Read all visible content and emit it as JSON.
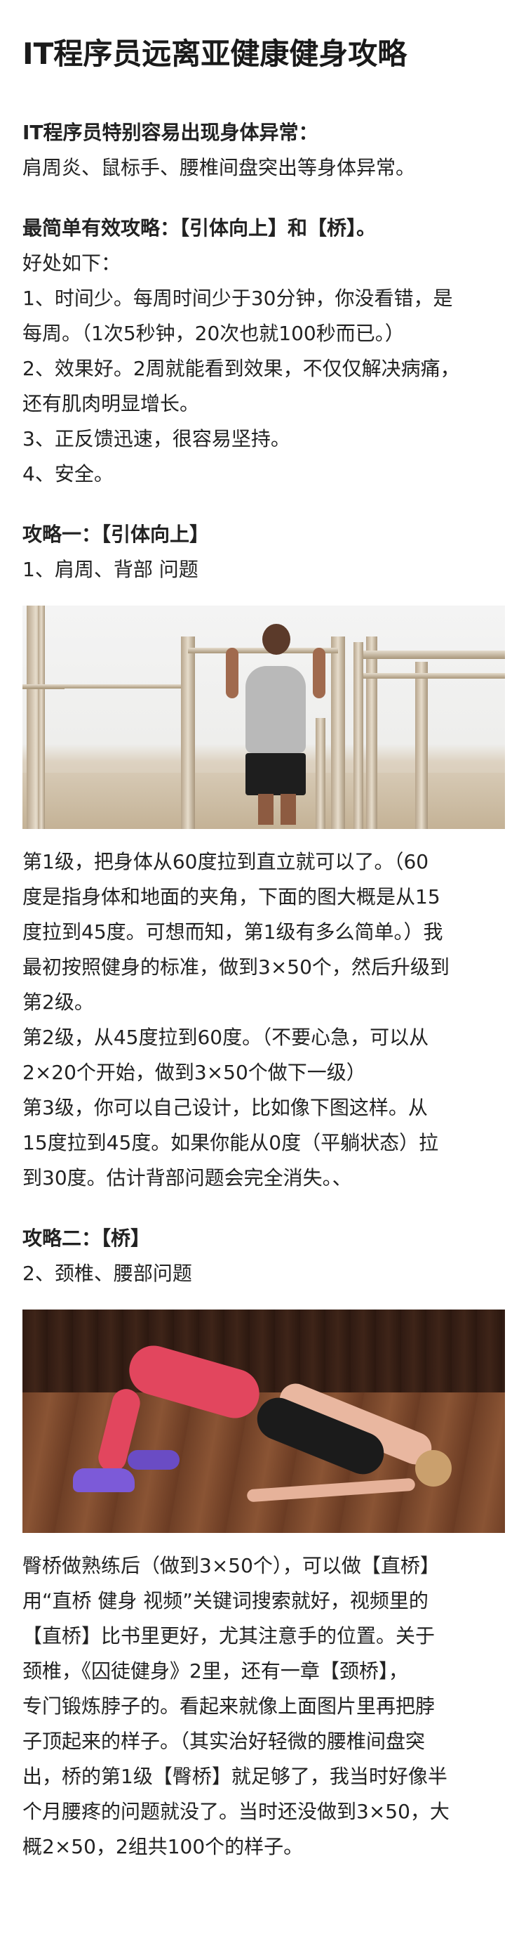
{
  "title": "IT程序员远离亚健康健身攻略",
  "intro": {
    "heading": "IT程序员特别容易出现身体异常：",
    "line": "肩周炎、鼠标手、腰椎间盘突出等身体异常。"
  },
  "strategy": {
    "heading": "最简单有效攻略：【引体向上】和【桥】。",
    "benefits_label": "好处如下：",
    "benefits": [
      "1、时间少。每周时间少于30分钟，你没看错，是",
      "每周。（1次5秒钟，20次也就100秒而已。）",
      "2、效果好。2周就能看到效果，不仅仅解决病痛，",
      "还有肌肉明显增长。",
      "3、正反馈迅速，很容易坚持。",
      "4、安全。"
    ]
  },
  "section1": {
    "heading": "攻略一：【引体向上】",
    "subheading": "1、肩周、背部 问题",
    "image_alt": "pull-up photo",
    "lines": [
      "第1级，把身体从60度拉到直立就可以了。（60",
      "度是指身体和地面的夹角，下面的图大概是从15",
      "度拉到45度。可想而知，第1级有多么简单。）我",
      "最初按照健身的标准，做到3×50个，然后升级到",
      "第2级。",
      "第2级，从45度拉到60度。（不要心急，可以从",
      "2×20个开始，做到3×50个做下一级）",
      "第3级，你可以自己设计，比如像下图这样。从",
      "15度拉到45度。如果你能从0度（平躺状态）拉",
      "到30度。估计背部问题会完全消失。、"
    ]
  },
  "section2": {
    "heading": "攻略二：【桥】",
    "subheading": "2、颈椎、腰部问题",
    "image_alt": "bridge photo",
    "lines": [
      "臀桥做熟练后（做到3×50个），可以做【直桥】",
      "用“直桥 健身 视频”关键词搜索就好，视频里的",
      "【直桥】比书里更好，尤其注意手的位置。关于",
      "颈椎，《囚徒健身》2里，还有一章【颈桥】，",
      "专门锻炼脖子的。看起来就像上面图片里再把脖",
      "子顶起来的样子。（其实治好轻微的腰椎间盘突",
      "出，桥的第1级【臀桥】就足够了，我当时好像半",
      "个月腰疼的问题就没了。当时还没做到3×50，大",
      "概2×50，2组共100个的样子。"
    ]
  }
}
